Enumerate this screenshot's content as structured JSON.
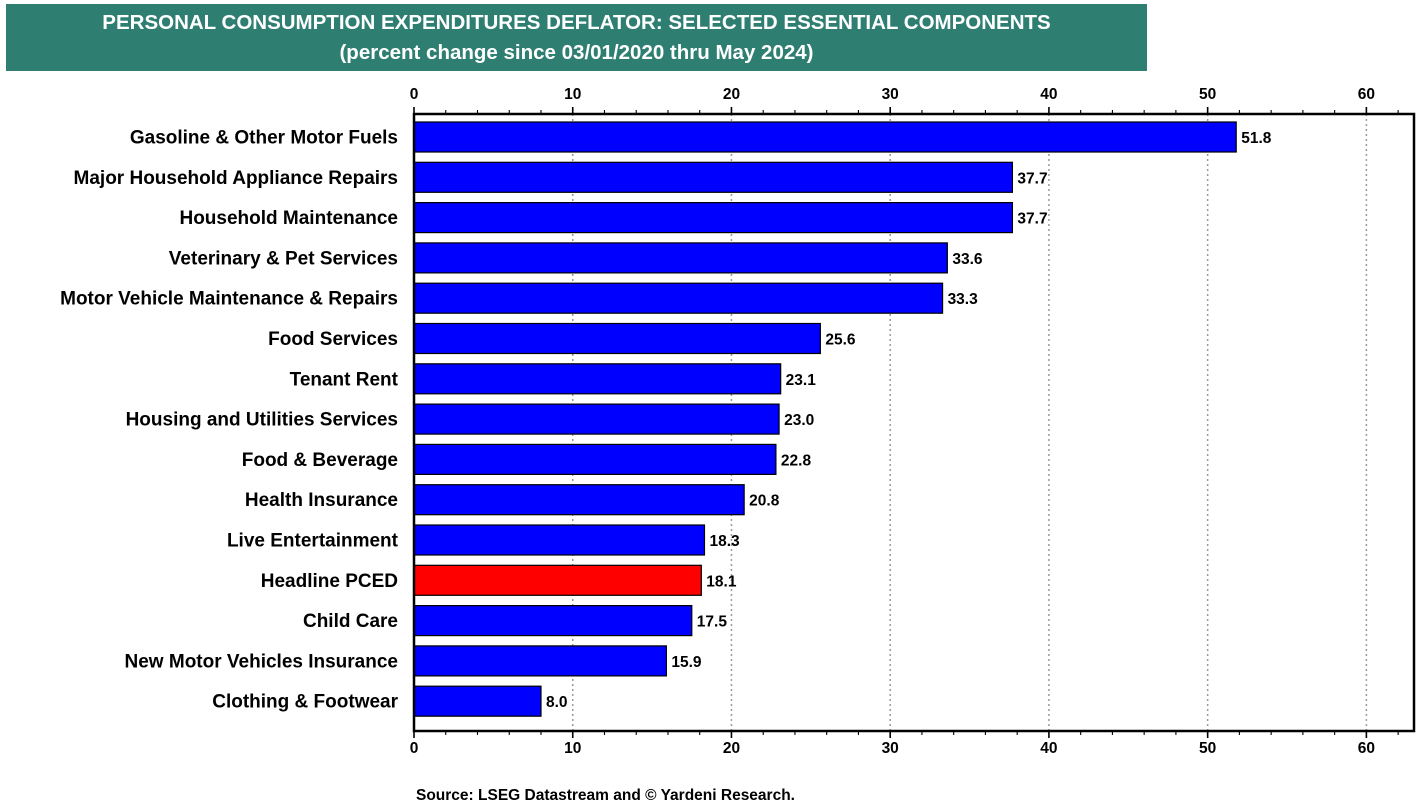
{
  "title": "PERSONAL CONSUMPTION EXPENDITURES DEFLATOR: SELECTED ESSENTIAL COMPONENTS",
  "subtitle": "(percent change since 03/01/2020 thru May 2024)",
  "source": "Source: LSEG Datastream and © Yardeni Research.",
  "colors": {
    "banner": "#2e7f72",
    "bar": "#0000ff",
    "highlight": "#ff0000"
  },
  "chart_data": {
    "type": "bar",
    "orientation": "horizontal",
    "categories": [
      "Gasoline & Other Motor Fuels",
      "Major Household Appliance Repairs",
      "Household Maintenance",
      "Veterinary & Pet Services",
      "Motor Vehicle Maintenance & Repairs",
      "Food Services",
      "Tenant Rent",
      "Housing and Utilities Services",
      "Food & Beverage",
      "Health Insurance",
      "Live Entertainment",
      "Headline PCED",
      "Child Care",
      "New Motor Vehicles Insurance",
      "Clothing & Footwear"
    ],
    "values": [
      51.8,
      37.7,
      37.7,
      33.6,
      33.3,
      25.6,
      23.1,
      23.0,
      22.8,
      20.8,
      18.3,
      18.1,
      17.5,
      15.9,
      8.0
    ],
    "data_labels": [
      "51.8",
      "37.7",
      "37.7",
      "33.6",
      "33.3",
      "25.6",
      "23.1",
      "23.0",
      "22.8",
      "20.8",
      "18.3",
      "18.1",
      "17.5",
      "15.9",
      "8.0"
    ],
    "highlight_category": "Headline PCED",
    "xlim": [
      0,
      63
    ],
    "x_ticks": [
      0,
      10,
      20,
      30,
      40,
      50,
      60
    ],
    "x_tick_labels": [
      "0",
      "10",
      "20",
      "30",
      "40",
      "50",
      "60"
    ],
    "grid": "vertical dotted",
    "axis_labels_top_and_bottom": true
  }
}
